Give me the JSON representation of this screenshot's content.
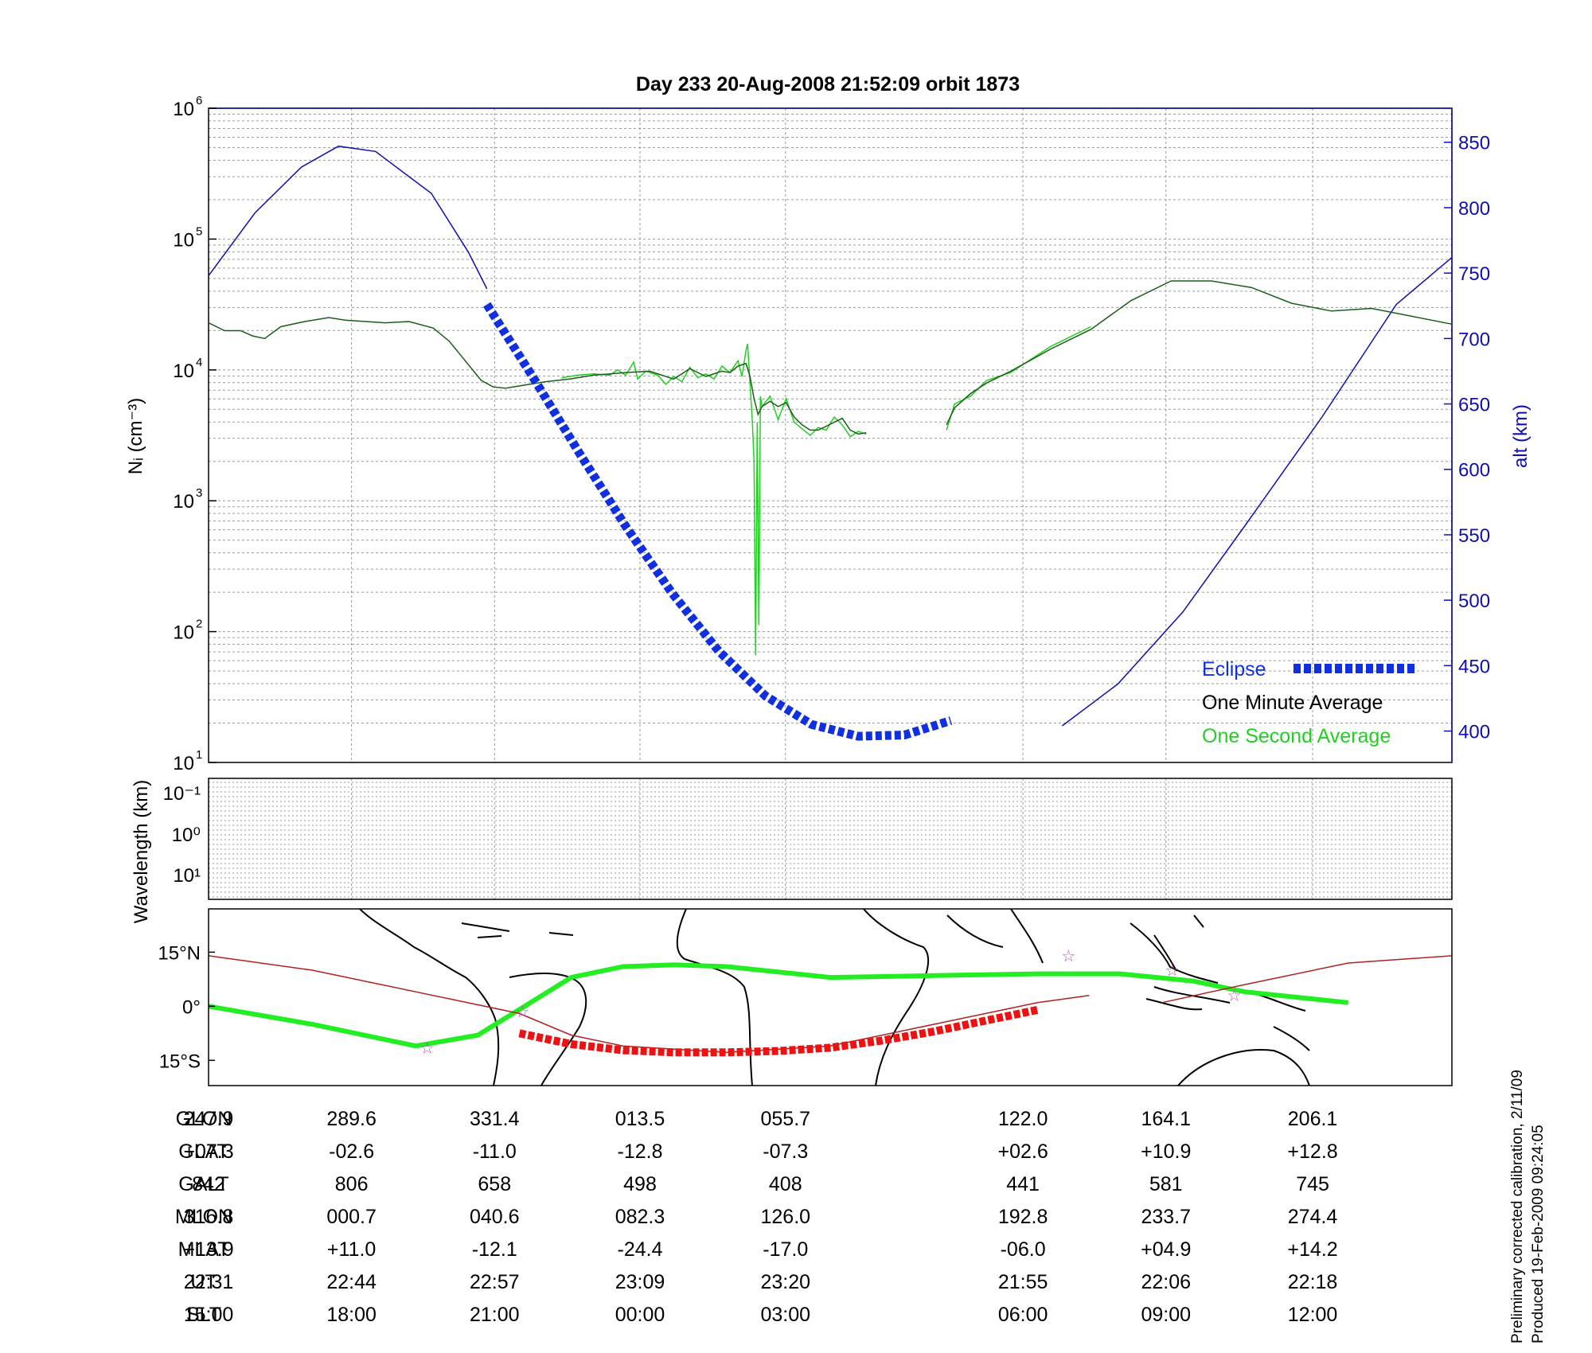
{
  "colors": {
    "ni_one_minute": "#1a5e1a",
    "ni_one_second": "#22d022",
    "altitude": "#1010b0",
    "eclipse": "#1030e0",
    "eclipse_ground": "#ee1111",
    "magnetic_equator": "#22ee22",
    "ground_track": "#b02020",
    "station_marker": "#cc44cc",
    "grid": "#9a9a9a"
  },
  "chart_data": [
    {
      "type": "line",
      "title": "Day 233  20-Aug-2008 21:52:09   orbit 1873",
      "ylabel": "Nᵢ (cm⁻³)",
      "ylabel_right": "alt (km)",
      "xlabel": "",
      "xlim": [
        0,
        1
      ],
      "ylim": [
        1,
        6
      ],
      "y_scale": "log10 (exponent values)",
      "yticks": [
        1,
        2,
        3,
        4,
        5,
        6
      ],
      "ylim_right": [
        376,
        876
      ],
      "yticks_right": [
        400,
        450,
        500,
        550,
        600,
        650,
        700,
        750,
        800,
        850
      ],
      "grid": true,
      "legend": "bottom-right",
      "legend_entries": [
        "Eclipse",
        "One Minute Average",
        "One Second Average"
      ],
      "series": [
        {
          "name": "One Minute Average",
          "points": [
            [
              0,
              4.36
            ],
            [
              0.02,
              4.3
            ],
            [
              0.04,
              4.3
            ],
            [
              0.055,
              4.26
            ],
            [
              0.07,
              4.24
            ],
            [
              0.09,
              4.33
            ],
            [
              0.12,
              4.37
            ],
            [
              0.15,
              4.4
            ],
            [
              0.17,
              4.38
            ],
            [
              0.22,
              4.36
            ],
            [
              0.25,
              4.37
            ],
            [
              0.28,
              4.32
            ],
            [
              0.3,
              4.22
            ],
            [
              0.32,
              4.07
            ],
            [
              0.34,
              3.92
            ],
            [
              0.355,
              3.87
            ],
            [
              0.37,
              3.86
            ],
            [
              0.39,
              3.88
            ],
            [
              0.42,
              3.91
            ],
            [
              0.45,
              3.93
            ],
            [
              0.48,
              3.96
            ],
            [
              0.52,
              3.98
            ],
            [
              0.55,
              3.99
            ],
            [
              0.58,
              3.93
            ],
            [
              0.6,
              4.01
            ],
            [
              0.62,
              3.95
            ],
            [
              0.64,
              3.99
            ],
            [
              0.65,
              3.98
            ],
            [
              0.66,
              4.03
            ],
            [
              0.67,
              4.05
            ],
            [
              0.675,
              3.95
            ],
            [
              0.68,
              3.78
            ],
            [
              0.685,
              3.66
            ],
            [
              0.69,
              3.72
            ],
            [
              0.7,
              3.76
            ],
            [
              0.71,
              3.72
            ],
            [
              0.72,
              3.75
            ],
            [
              0.73,
              3.64
            ],
            [
              0.74,
              3.58
            ],
            [
              0.75,
              3.54
            ],
            [
              0.76,
              3.54
            ],
            [
              0.77,
              3.57
            ],
            [
              0.78,
              3.6
            ],
            [
              0.79,
              3.63
            ],
            [
              0.8,
              3.54
            ],
            [
              0.81,
              3.51
            ],
            [
              0.82,
              3.52
            ],
            null,
            [
              0.92,
              3.58
            ],
            [
              0.93,
              3.71
            ],
            [
              0.95,
              3.82
            ],
            [
              0.97,
              3.9
            ],
            [
              1.0,
              3.99
            ],
            [
              1.05,
              4.16
            ],
            [
              1.1,
              4.31
            ],
            [
              1.15,
              4.53
            ],
            [
              1.2,
              4.68
            ],
            [
              1.25,
              4.68
            ],
            [
              1.3,
              4.63
            ],
            [
              1.35,
              4.51
            ],
            [
              1.4,
              4.45
            ],
            [
              1.45,
              4.47
            ],
            [
              1.5,
              4.41
            ],
            [
              1.55,
              4.35
            ]
          ]
        },
        {
          "name": "One Second Average",
          "points": [
            [
              0.44,
              3.94
            ],
            [
              0.46,
              3.96
            ],
            [
              0.48,
              3.97
            ],
            [
              0.5,
              3.96
            ],
            [
              0.51,
              4.0
            ],
            [
              0.52,
              3.96
            ],
            [
              0.53,
              4.06
            ],
            [
              0.535,
              3.93
            ],
            [
              0.545,
              3.99
            ],
            [
              0.56,
              3.96
            ],
            [
              0.57,
              3.89
            ],
            [
              0.58,
              3.95
            ],
            [
              0.59,
              3.91
            ],
            [
              0.6,
              4.02
            ],
            [
              0.61,
              3.94
            ],
            [
              0.62,
              3.97
            ],
            [
              0.63,
              3.93
            ],
            [
              0.64,
              4.03
            ],
            [
              0.65,
              3.98
            ],
            [
              0.66,
              4.07
            ],
            [
              0.665,
              3.95
            ],
            [
              0.67,
              4.15
            ],
            [
              0.672,
              4.2
            ],
            [
              0.675,
              3.9
            ],
            [
              0.678,
              3.6
            ],
            [
              0.68,
              3.3
            ],
            [
              0.682,
              1.82
            ],
            [
              0.684,
              3.6
            ],
            [
              0.686,
              2.05
            ],
            [
              0.688,
              3.8
            ],
            [
              0.69,
              3.72
            ],
            [
              0.7,
              3.8
            ],
            [
              0.71,
              3.62
            ],
            [
              0.72,
              3.78
            ],
            [
              0.73,
              3.6
            ],
            [
              0.74,
              3.55
            ],
            [
              0.75,
              3.5
            ],
            [
              0.76,
              3.56
            ],
            [
              0.77,
              3.54
            ],
            [
              0.78,
              3.64
            ],
            [
              0.79,
              3.58
            ],
            [
              0.8,
              3.49
            ],
            [
              0.81,
              3.53
            ],
            [
              0.82,
              3.51
            ],
            null,
            [
              0.92,
              3.54
            ],
            [
              0.93,
              3.74
            ],
            [
              0.95,
              3.8
            ],
            [
              0.97,
              3.92
            ],
            [
              1.0,
              3.98
            ],
            [
              1.05,
              4.18
            ],
            [
              1.1,
              4.33
            ]
          ]
        }
      ],
      "altitude_series": {
        "name": "alt (km)",
        "points": [
          [
            0.0,
            748
          ],
          [
            0.05,
            796
          ],
          [
            0.1,
            831
          ],
          [
            0.14,
            847
          ],
          [
            0.18,
            843
          ],
          [
            0.24,
            811
          ],
          [
            0.28,
            766
          ],
          [
            0.3,
            738
          ],
          null,
          [
            0.82,
            405
          ],
          null,
          [
            0.92,
            404
          ],
          [
            0.98,
            436
          ],
          [
            1.05,
            491
          ],
          [
            1.12,
            560
          ],
          [
            1.2,
            640
          ],
          [
            1.28,
            726
          ],
          [
            1.34,
            762
          ]
        ]
      },
      "eclipse_series": {
        "name": "Eclipse",
        "points": [
          [
            0.3,
            726
          ],
          [
            0.35,
            670
          ],
          [
            0.4,
            612
          ],
          [
            0.45,
            556
          ],
          [
            0.5,
            505
          ],
          [
            0.55,
            461
          ],
          [
            0.6,
            427
          ],
          [
            0.65,
            405
          ],
          [
            0.7,
            396
          ],
          [
            0.75,
            397
          ],
          [
            0.8,
            408
          ]
        ]
      },
      "x_positions": [
        0,
        0.115,
        0.23,
        0.347,
        0.464,
        0.655,
        0.77,
        0.888,
        1.0
      ],
      "note_axis": "x axis is the orbit position; tick columns listed in table"
    },
    {
      "type": "heatmap",
      "ylabel": "Wavelength (km)",
      "yticks": [
        "10⁻¹",
        "10⁰",
        "10¹"
      ],
      "grid": true
    },
    {
      "type": "line",
      "yticks": [
        "15°N",
        "0°",
        "15°S"
      ],
      "ylim": [
        -22,
        27
      ],
      "series": [
        {
          "name": "Magnetic equator",
          "points": [
            [
              0,
              0
            ],
            [
              0.1,
              -5
            ],
            [
              0.2,
              -11
            ],
            [
              0.26,
              -8
            ],
            [
              0.35,
              8
            ],
            [
              0.4,
              11
            ],
            [
              0.45,
              11.5
            ],
            [
              0.5,
              11
            ],
            [
              0.6,
              8
            ],
            [
              0.7,
              8.5
            ],
            [
              0.8,
              9
            ],
            [
              0.88,
              9
            ],
            [
              0.95,
              7
            ],
            [
              1.0,
              4
            ],
            [
              1.1,
              1
            ]
          ]
        },
        {
          "name": "Ground track",
          "points": [
            [
              0,
              14
            ],
            [
              0.1,
              10
            ],
            [
              0.2,
              4
            ],
            [
              0.3,
              -2
            ],
            [
              0.35,
              -8
            ],
            [
              0.4,
              -11
            ],
            [
              0.5,
              -12.8
            ],
            [
              0.6,
              -11
            ],
            [
              0.7,
              -5
            ],
            [
              0.8,
              1
            ],
            [
              0.85,
              3
            ],
            null,
            [
              0.92,
              1
            ],
            [
              1.0,
              6
            ],
            [
              1.1,
              12
            ],
            [
              1.2,
              14
            ]
          ]
        },
        {
          "name": "Eclipse",
          "points": [
            [
              0.3,
              -7.5
            ],
            [
              0.35,
              -10.5
            ],
            [
              0.4,
              -12.2
            ],
            [
              0.45,
              -12.8
            ],
            [
              0.5,
              -12.8
            ],
            [
              0.55,
              -12.4
            ],
            [
              0.6,
              -11.5
            ],
            [
              0.65,
              -9.5
            ],
            [
              0.7,
              -7
            ],
            [
              0.75,
              -4
            ],
            [
              0.8,
              -1
            ]
          ]
        }
      ],
      "markers": [
        [
          0.211,
          -11.5
        ],
        [
          0.303,
          -1.5
        ],
        [
          0.83,
          14
        ],
        [
          0.93,
          10
        ],
        [
          0.99,
          3
        ]
      ]
    }
  ],
  "table": {
    "row_labels": [
      "GLON",
      "GLAT",
      "GALT",
      "MLON",
      "MLAT",
      "UT",
      "SLT"
    ],
    "columns": [
      [
        "247.9",
        "+07.3",
        "842",
        "316.8",
        "+13.9",
        "22:31",
        "15:00"
      ],
      [
        "289.6",
        "-02.6",
        "806",
        "000.7",
        "+11.0",
        "22:44",
        "18:00"
      ],
      [
        "331.4",
        "-11.0",
        "658",
        "040.6",
        "-12.1",
        "22:57",
        "21:00"
      ],
      [
        "013.5",
        "-12.8",
        "498",
        "082.3",
        "-24.4",
        "23:09",
        "00:00"
      ],
      [
        "055.7",
        "-07.3",
        "408",
        "126.0",
        "-17.0",
        "23:20",
        "03:00"
      ],
      [
        "122.0",
        "+02.6",
        "441",
        "192.8",
        "-06.0",
        "21:55",
        "06:00"
      ],
      [
        "164.1",
        "+10.9",
        "581",
        "233.7",
        "+04.9",
        "22:06",
        "09:00"
      ],
      [
        "206.1",
        "+12.8",
        "745",
        "274.4",
        "+14.2",
        "22:18",
        "12:00"
      ]
    ]
  },
  "footer": {
    "line1": "Preliminary corrected calibration, 2/11/09",
    "line2": "Produced 19-Feb-2009 09:24:05"
  }
}
